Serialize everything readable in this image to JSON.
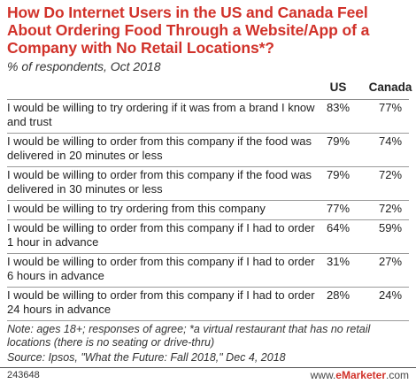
{
  "chart_data": {
    "type": "table",
    "title": "How Do Internet Users in the US and Canada Feel About Ordering Food Through a Website/App of a Company with No Retail Locations*?",
    "subtitle": "% of respondents, Oct 2018",
    "columns": [
      "US",
      "Canada"
    ],
    "rows": [
      {
        "label": "I would be willing to try ordering if it was from a brand I know and trust",
        "us": "83%",
        "canada": "77%"
      },
      {
        "label": "I would be willing to order from this company if the food was delivered in 20 minutes or less",
        "us": "79%",
        "canada": "74%"
      },
      {
        "label": "I would be willing to order from this company if the food was delivered in 30 minutes or less",
        "us": "79%",
        "canada": "72%"
      },
      {
        "label": "I would be willing to try ordering from this company",
        "us": "77%",
        "canada": "72%"
      },
      {
        "label": "I would be willing to order from this company if I had to order 1 hour in advance",
        "us": "64%",
        "canada": "59%"
      },
      {
        "label": "I would be willing to order from this company if I had to order 6 hours in advance",
        "us": "31%",
        "canada": "27%"
      },
      {
        "label": "I would be willing to order from this company if I had to order 24 hours in advance",
        "us": "28%",
        "canada": "24%"
      }
    ],
    "note": "Note: ages 18+; responses of agree; *a virtual restaurant that has no retail locations (there is no seating or drive-thru)",
    "source": "Source: Ipsos, \"What the Future: Fall 2018,\" Dec 4, 2018"
  },
  "footer": {
    "chart_id": "243648",
    "brand_prefix": "www.",
    "brand_name": "eMarketer",
    "brand_suffix": ".com"
  },
  "colors": {
    "title": "#d1322a",
    "brand_accent": "#d1322a"
  }
}
